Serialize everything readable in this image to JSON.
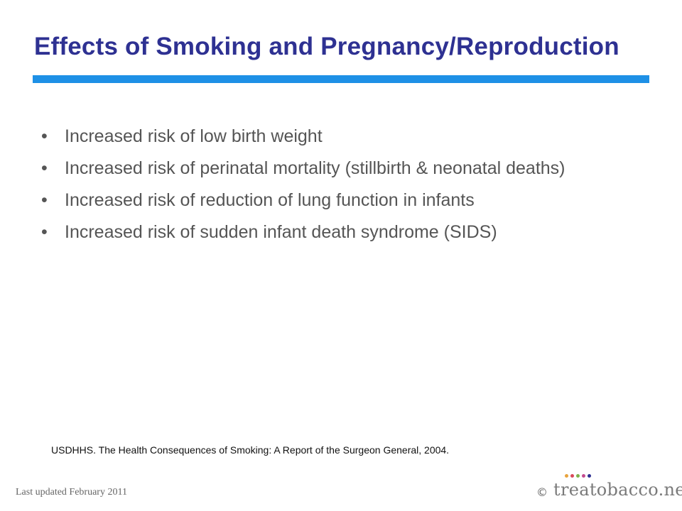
{
  "slide": {
    "title": "Effects of Smoking and Pregnancy/Reproduction",
    "bullet_symbol": "•",
    "bullets": [
      "Increased risk of low birth weight",
      "Increased risk of perinatal mortality (stillbirth & neonatal deaths)",
      "Increased risk of reduction of lung function in infants",
      "Increased risk of sudden infant death syndrome (SIDS)"
    ],
    "citation": "USDHHS. The Health Consequences of Smoking: A Report of the Surgeon General, 2004."
  },
  "footer": {
    "last_updated": "Last updated February 2011",
    "copyright_symbol": "©",
    "brand": "treatobacco.net",
    "brand_dot_colors": [
      "#e8a33c",
      "#d94a5a",
      "#7fb24a",
      "#c44b8f",
      "#2e3192"
    ]
  },
  "colors": {
    "title": "#2e3192",
    "title_rule": "#1e90e6",
    "body_text": "#555555"
  }
}
